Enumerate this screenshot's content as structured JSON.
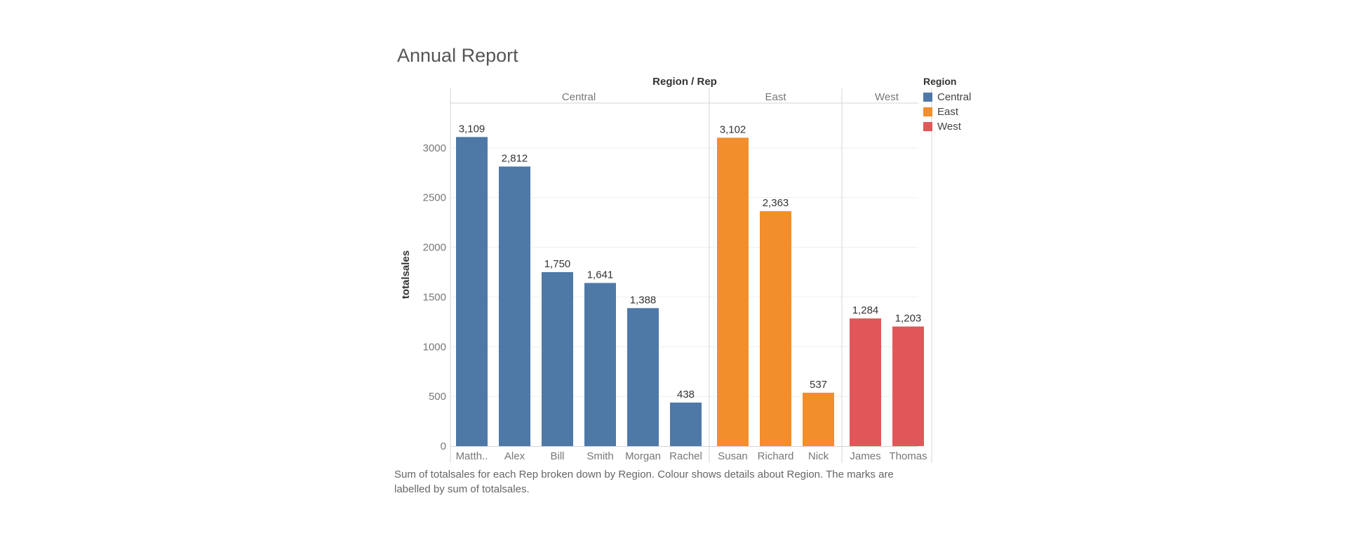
{
  "chart_data": {
    "type": "bar",
    "title": "Annual Report",
    "column_header": "Region / Rep",
    "xlabel": "",
    "ylabel": "totalsales",
    "ylim": [
      0,
      3450
    ],
    "yticks": [
      0,
      500,
      1000,
      1500,
      2000,
      2500,
      3000
    ],
    "grid": true,
    "legend_position": "top-right",
    "legend_title": "Region",
    "groups": [
      {
        "name": "Central",
        "color": "#4E79A7",
        "categories": [
          "Matth..",
          "Alex",
          "Bill",
          "Smith",
          "Morgan",
          "Rachel"
        ],
        "values": [
          3109,
          2812,
          1750,
          1641,
          1388,
          438
        ],
        "labels": [
          "3,109",
          "2,812",
          "1,750",
          "1,641",
          "1,388",
          "438"
        ]
      },
      {
        "name": "East",
        "color": "#F28E2B",
        "categories": [
          "Susan",
          "Richard",
          "Nick"
        ],
        "values": [
          3102,
          2363,
          537
        ],
        "labels": [
          "3,102",
          "2,363",
          "537"
        ]
      },
      {
        "name": "West",
        "color": "#E15759",
        "categories": [
          "James",
          "Thomas"
        ],
        "values": [
          1284,
          1203
        ],
        "labels": [
          "1,284",
          "1,203"
        ]
      }
    ],
    "caption": "Sum of totalsales for each Rep broken down by Region.  Colour shows details about Region.  The marks are labelled by sum of totalsales."
  }
}
